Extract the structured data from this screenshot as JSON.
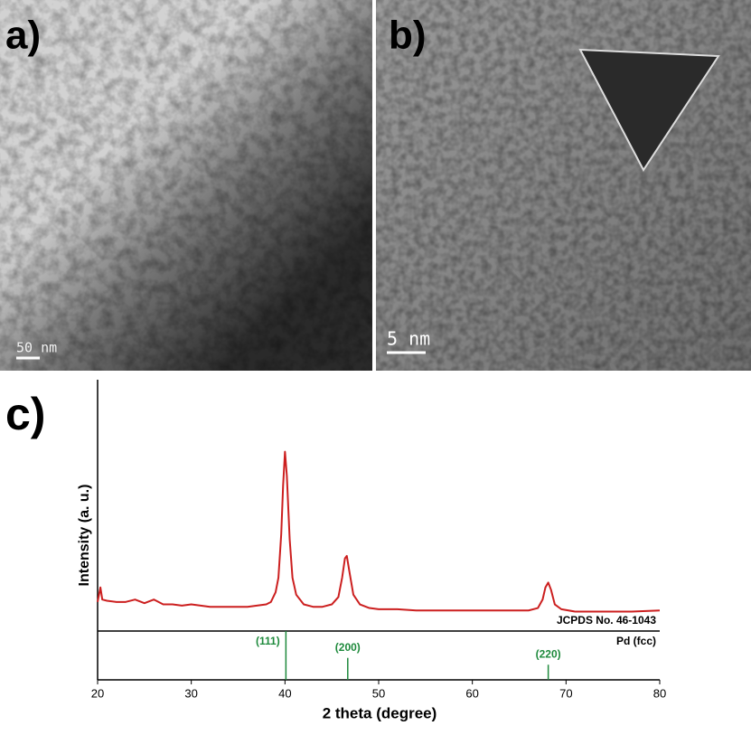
{
  "panels": [
    {
      "label": "a)",
      "scale_bar": "50 nm"
    },
    {
      "label": "b)",
      "scale_bar": "5 nm"
    }
  ],
  "chart_data": {
    "type": "line",
    "label": "c)",
    "x_label": "2 theta (degree)",
    "y_label": "Intensity (a. u.)",
    "x": [
      20,
      20.3,
      20.5,
      21,
      22,
      23,
      24,
      25,
      26,
      27,
      28,
      29,
      30,
      31,
      32,
      33,
      34,
      35,
      36,
      37,
      38,
      38.5,
      39,
      39.3,
      39.6,
      39.8,
      40,
      40.2,
      40.5,
      40.8,
      41.2,
      42,
      43,
      44,
      45,
      45.7,
      46.1,
      46.4,
      46.6,
      46.9,
      47.3,
      48,
      49,
      50,
      52,
      54,
      56,
      58,
      60,
      62,
      64,
      66,
      67,
      67.5,
      67.8,
      68.1,
      68.4,
      68.8,
      69.5,
      71,
      73,
      75,
      77,
      80
    ],
    "series": [
      {
        "color": "#cc1f1f",
        "values": [
          12,
          18,
          13,
          12.5,
          12,
          12,
          13,
          11.5,
          13,
          11,
          11,
          10.5,
          11,
          10.5,
          10,
          10,
          10,
          10,
          10,
          10.5,
          11,
          12,
          16,
          22,
          40,
          60,
          74,
          64,
          38,
          22,
          15,
          11,
          10,
          10,
          11,
          14,
          22,
          30,
          31,
          24,
          15,
          11,
          9.5,
          9,
          9,
          8.5,
          8.5,
          8.5,
          8.5,
          8.5,
          8.5,
          8.5,
          9.5,
          13,
          18,
          20,
          17,
          11,
          9,
          8,
          8,
          8,
          8,
          8.5
        ]
      }
    ],
    "xlim": [
      20,
      80
    ],
    "xticks": [
      20,
      30,
      40,
      50,
      60,
      70,
      80
    ],
    "ylim": [
      0,
      100
    ],
    "reference": {
      "name": "JCPDS No. 46-1043",
      "phase": "Pd (fcc)",
      "color": "#1e8a3c",
      "x": [
        40.1,
        46.7,
        68.1
      ],
      "values": [
        100,
        45,
        31
      ],
      "labels": [
        "(111)",
        "(200)",
        "(220)"
      ],
      "ylim": [
        0,
        100
      ]
    }
  }
}
